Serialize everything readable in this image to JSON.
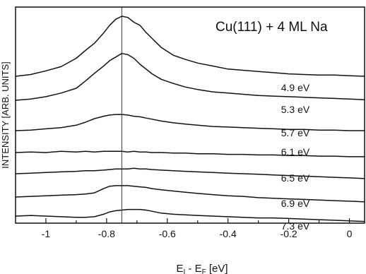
{
  "chart_data": {
    "type": "line",
    "title": "Cu(111) + 4 ML Na",
    "xlabel_main": "E",
    "xlabel_sub1": "I",
    "xlabel_mid": " - E",
    "xlabel_sub2": "F",
    "xlabel_unit": " [eV]",
    "ylabel": "INTENSITY [ARB. UNITS]",
    "xlim": [
      -1.1,
      0.05
    ],
    "x_ticks": [
      -1.0,
      -0.9,
      -0.8,
      -0.7,
      -0.6,
      -0.5,
      -0.4,
      -0.3,
      -0.2,
      -0.1,
      0.0
    ],
    "x_tick_labels": [
      {
        "value": -1.0,
        "label": "-1"
      },
      {
        "value": -0.8,
        "label": "-0.8"
      },
      {
        "value": -0.6,
        "label": "-0.6"
      },
      {
        "value": -0.4,
        "label": "-0.4"
      },
      {
        "value": -0.2,
        "label": "-0.2"
      },
      {
        "value": 0.0,
        "label": "0"
      }
    ],
    "reference_line_x": -0.75,
    "y_units": "arbitrary",
    "grid": false,
    "series": [
      {
        "name": "4.9 eV",
        "x": [
          -1.1,
          -1.05,
          -1.0,
          -0.95,
          -0.9,
          -0.87,
          -0.84,
          -0.81,
          -0.79,
          -0.77,
          -0.75,
          -0.73,
          -0.71,
          -0.69,
          -0.67,
          -0.65,
          -0.62,
          -0.58,
          -0.54,
          -0.5,
          -0.45,
          -0.4,
          -0.35,
          -0.3,
          -0.25,
          -0.2,
          -0.15,
          -0.1,
          -0.05,
          0.0,
          0.05
        ],
        "y": [
          0.0,
          0.03,
          0.09,
          0.16,
          0.3,
          0.43,
          0.55,
          0.72,
          0.85,
          0.95,
          1.0,
          0.98,
          0.9,
          0.85,
          0.73,
          0.63,
          0.48,
          0.35,
          0.28,
          0.22,
          0.17,
          0.12,
          0.1,
          0.08,
          0.06,
          0.04,
          0.03,
          0.02,
          0.02,
          0.01,
          0.0
        ]
      },
      {
        "name": "5.3 eV",
        "x": [
          -1.1,
          -1.05,
          -1.0,
          -0.95,
          -0.9,
          -0.87,
          -0.84,
          -0.81,
          -0.79,
          -0.77,
          -0.75,
          -0.73,
          -0.71,
          -0.69,
          -0.67,
          -0.65,
          -0.62,
          -0.58,
          -0.54,
          -0.5,
          -0.45,
          -0.4,
          -0.35,
          -0.3,
          -0.25,
          -0.2,
          -0.15,
          -0.1,
          -0.05,
          0.0,
          0.05
        ],
        "y": [
          0.0,
          0.02,
          0.06,
          0.12,
          0.2,
          0.32,
          0.45,
          0.57,
          0.66,
          0.72,
          0.78,
          0.76,
          0.7,
          0.6,
          0.52,
          0.44,
          0.35,
          0.28,
          0.22,
          0.18,
          0.14,
          0.12,
          0.1,
          0.08,
          0.07,
          0.06,
          0.05,
          0.04,
          0.03,
          0.02,
          0.01
        ]
      },
      {
        "name": "5.7 eV",
        "x": [
          -1.1,
          -1.05,
          -1.0,
          -0.95,
          -0.9,
          -0.87,
          -0.84,
          -0.81,
          -0.79,
          -0.77,
          -0.75,
          -0.73,
          -0.71,
          -0.69,
          -0.67,
          -0.65,
          -0.62,
          -0.58,
          -0.54,
          -0.5,
          -0.45,
          -0.4,
          -0.35,
          -0.3,
          -0.25,
          -0.2,
          -0.15,
          -0.1,
          -0.05,
          0.0,
          0.05
        ],
        "y": [
          0.0,
          0.01,
          0.03,
          0.05,
          0.09,
          0.14,
          0.2,
          0.24,
          0.26,
          0.27,
          0.27,
          0.26,
          0.24,
          0.23,
          0.21,
          0.19,
          0.16,
          0.13,
          0.11,
          0.09,
          0.07,
          0.06,
          0.05,
          0.04,
          0.03,
          0.02,
          0.02,
          0.01,
          0.01,
          0.0,
          0.0
        ]
      },
      {
        "name": "6.1 eV",
        "x": [
          -1.1,
          -1.05,
          -1.0,
          -0.95,
          -0.9,
          -0.87,
          -0.84,
          -0.81,
          -0.79,
          -0.77,
          -0.75,
          -0.73,
          -0.71,
          -0.69,
          -0.67,
          -0.65,
          -0.62,
          -0.58,
          -0.54,
          -0.5,
          -0.45,
          -0.4,
          -0.35,
          -0.3,
          -0.25,
          -0.2,
          -0.15,
          -0.1,
          -0.05,
          0.0,
          0.05
        ],
        "y": [
          0.0,
          0.01,
          0.0,
          0.02,
          0.01,
          0.02,
          0.01,
          0.02,
          0.02,
          0.02,
          0.02,
          0.01,
          0.02,
          0.01,
          0.01,
          0.0,
          0.0,
          -0.01,
          -0.01,
          -0.02,
          -0.02,
          -0.03,
          -0.03,
          -0.04,
          -0.04,
          -0.05,
          -0.05,
          -0.06,
          -0.06,
          -0.07,
          -0.07
        ]
      },
      {
        "name": "6.5 eV",
        "x": [
          -1.1,
          -1.05,
          -1.0,
          -0.95,
          -0.9,
          -0.87,
          -0.84,
          -0.81,
          -0.79,
          -0.77,
          -0.75,
          -0.73,
          -0.71,
          -0.69,
          -0.67,
          -0.65,
          -0.62,
          -0.58,
          -0.54,
          -0.5,
          -0.45,
          -0.4,
          -0.35,
          -0.3,
          -0.25,
          -0.2,
          -0.15,
          -0.1,
          -0.05,
          0.0,
          0.05
        ],
        "y": [
          0.0,
          0.01,
          0.02,
          0.03,
          0.04,
          0.05,
          0.05,
          0.06,
          0.07,
          0.08,
          0.08,
          0.08,
          0.09,
          0.08,
          0.08,
          0.07,
          0.06,
          0.05,
          0.04,
          0.03,
          0.02,
          0.01,
          0.0,
          -0.01,
          -0.02,
          -0.03,
          -0.04,
          -0.05,
          -0.06,
          -0.07,
          -0.08
        ]
      },
      {
        "name": "6.9 eV",
        "x": [
          -1.1,
          -1.05,
          -1.0,
          -0.95,
          -0.9,
          -0.87,
          -0.84,
          -0.81,
          -0.79,
          -0.77,
          -0.75,
          -0.73,
          -0.71,
          -0.69,
          -0.67,
          -0.65,
          -0.62,
          -0.58,
          -0.54,
          -0.5,
          -0.45,
          -0.4,
          -0.35,
          -0.3,
          -0.25,
          -0.2,
          -0.15,
          -0.1,
          -0.05,
          0.0,
          0.05
        ],
        "y": [
          0.0,
          0.01,
          0.02,
          0.03,
          0.04,
          0.05,
          0.07,
          0.14,
          0.18,
          0.19,
          0.19,
          0.19,
          0.18,
          0.17,
          0.16,
          0.14,
          0.12,
          0.1,
          0.08,
          0.06,
          0.04,
          0.02,
          0.01,
          -0.01,
          -0.02,
          -0.03,
          -0.04,
          -0.05,
          -0.06,
          -0.07,
          -0.08
        ]
      },
      {
        "name": "7.3 eV",
        "x": [
          -1.1,
          -1.05,
          -1.0,
          -0.95,
          -0.9,
          -0.87,
          -0.84,
          -0.81,
          -0.79,
          -0.77,
          -0.75,
          -0.73,
          -0.71,
          -0.69,
          -0.67,
          -0.65,
          -0.62,
          -0.58,
          -0.54,
          -0.5,
          -0.45,
          -0.4,
          -0.35,
          -0.3,
          -0.25,
          -0.2,
          -0.15,
          -0.1,
          -0.05,
          0.0,
          0.05
        ],
        "y": [
          0.0,
          0.01,
          0.0,
          -0.01,
          -0.02,
          -0.02,
          -0.01,
          0.03,
          0.07,
          0.09,
          0.1,
          0.11,
          0.11,
          0.11,
          0.1,
          0.08,
          0.05,
          0.03,
          0.02,
          0.01,
          0.0,
          -0.01,
          -0.02,
          -0.03,
          -0.03,
          -0.04,
          -0.05,
          -0.06,
          -0.07,
          -0.08,
          -0.09
        ]
      }
    ]
  }
}
